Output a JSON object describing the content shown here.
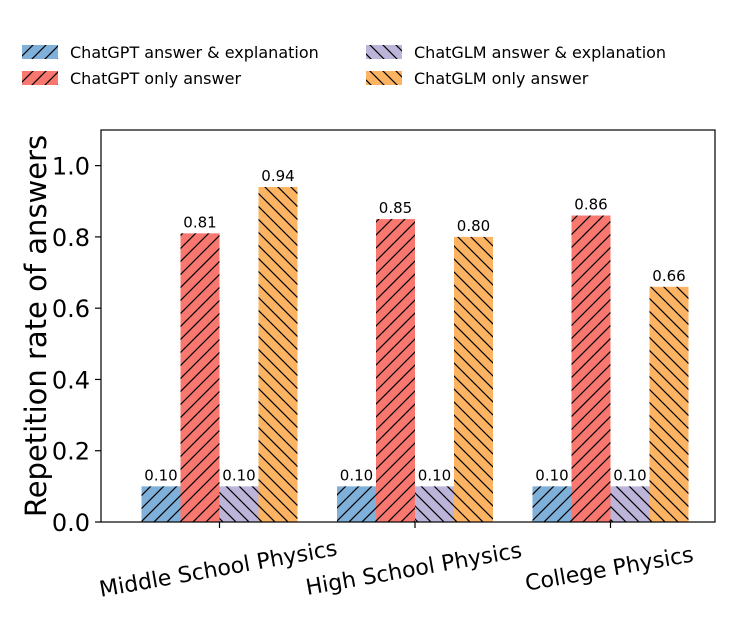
{
  "chart_data": {
    "type": "bar",
    "title": "",
    "xlabel": "",
    "ylabel": "Repetition rate of answers",
    "ylim": [
      0,
      1.1
    ],
    "yticks": [
      0.0,
      0.2,
      0.4,
      0.6,
      0.8,
      1.0
    ],
    "ytick_labels": [
      "0.0",
      "0.2",
      "0.4",
      "0.6",
      "0.8",
      "1.0"
    ],
    "grid": false,
    "legend_position": "top",
    "categories": [
      "Middle School Physics",
      "High School Physics",
      "College Physics"
    ],
    "series": [
      {
        "name": "ChatGPT answer & explanation",
        "values": [
          0.1,
          0.1,
          0.1
        ],
        "labels": [
          "0.10",
          "0.10",
          "0.10"
        ],
        "color": "#7eb0d9",
        "hatch": "forward"
      },
      {
        "name": "ChatGPT only answer",
        "values": [
          0.81,
          0.85,
          0.86
        ],
        "labels": [
          "0.81",
          "0.85",
          "0.86"
        ],
        "color": "#f8786f",
        "hatch": "forward"
      },
      {
        "name": "ChatGLM answer & explanation",
        "values": [
          0.1,
          0.1,
          0.1
        ],
        "labels": [
          "0.10",
          "0.10",
          "0.10"
        ],
        "color": "#bdb5d9",
        "hatch": "backward"
      },
      {
        "name": "ChatGLM only answer",
        "values": [
          0.94,
          0.8,
          0.66
        ],
        "labels": [
          "0.94",
          "0.80",
          "0.66"
        ],
        "color": "#fdb462",
        "hatch": "backward"
      }
    ]
  }
}
